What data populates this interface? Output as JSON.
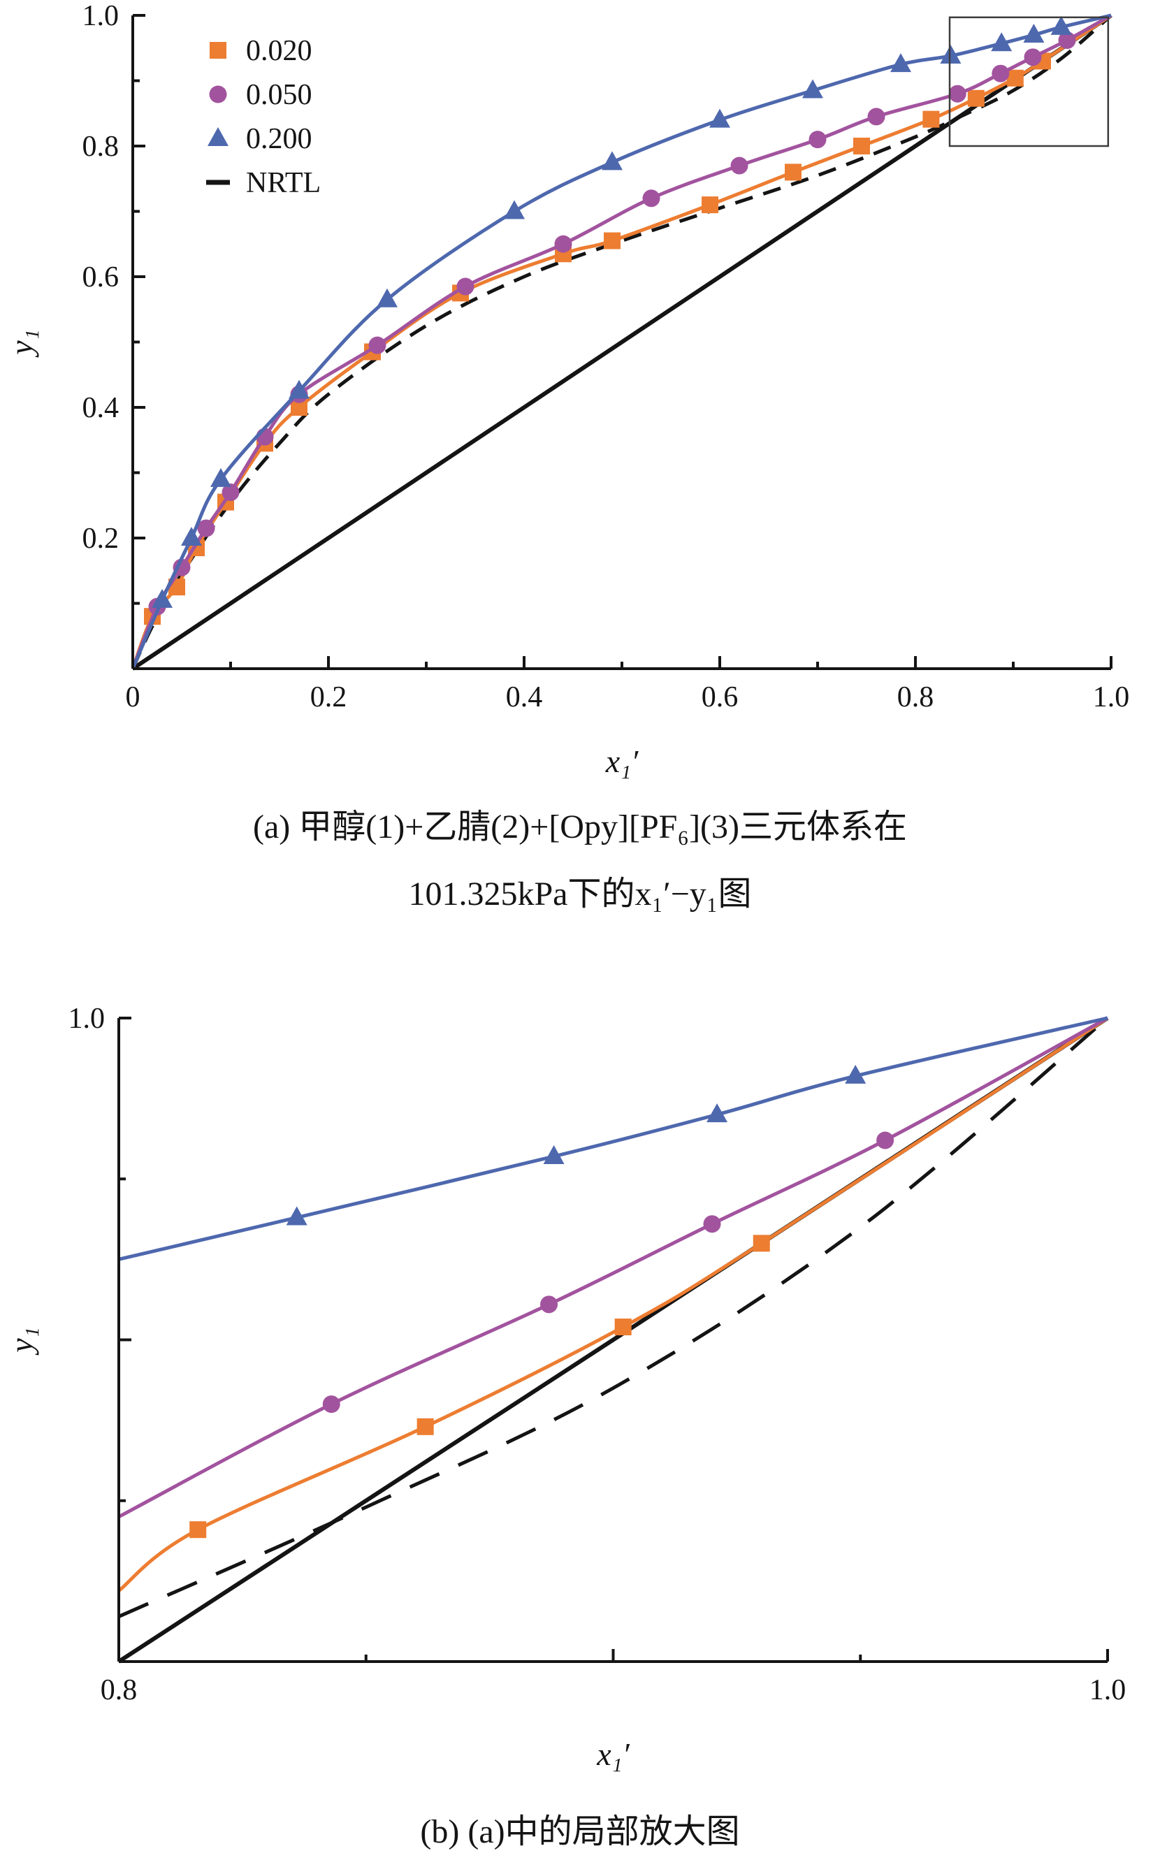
{
  "figure": {
    "caption_a_line1": "(a) 甲醇(1)+乙腈(2)+[Opy][PF₆](3)三元体系在",
    "caption_a_line2": "101.325kPa下的x₁′−y₁图",
    "caption_b": "(b) (a)中的局部放大图"
  },
  "colors": {
    "series_0020": "#ED7D31",
    "series_0050": "#A2539E",
    "series_0200": "#4E68AE",
    "nrtl": "#141414",
    "diagonal": "#141414",
    "axis": "#141414",
    "zoom_box": "#3C3C3C",
    "text": "#141414"
  },
  "chart_data": [
    {
      "id": "panel_a",
      "type": "line",
      "title": "",
      "xlabel": "x₁′",
      "ylabel": "y₁",
      "xlim": [
        0,
        1.0
      ],
      "ylim": [
        0,
        1.0
      ],
      "grid": false,
      "xticks": [
        0,
        0.2,
        0.4,
        0.6,
        0.8,
        1.0
      ],
      "xtick_labels": [
        "0",
        "0.2",
        "0.4",
        "0.6",
        "0.8",
        "1.0"
      ],
      "yticks": [
        0.2,
        0.4,
        0.6,
        0.8,
        1.0
      ],
      "ytick_labels": [
        "0.2",
        "0.4",
        "0.6",
        "0.8",
        "1.0"
      ],
      "legend_position": "upper-left",
      "legend": [
        {
          "label": "0.020",
          "marker": "square",
          "color_key": "series_0020"
        },
        {
          "label": "0.050",
          "marker": "circle",
          "color_key": "series_0050"
        },
        {
          "label": "0.200",
          "marker": "triangle",
          "color_key": "series_0200"
        },
        {
          "label": "NRTL",
          "marker": "dash",
          "color_key": "nrtl"
        }
      ],
      "diagonal": true,
      "series": [
        {
          "name": "0.020",
          "marker": "square",
          "color_key": "series_0020",
          "line_start": [
            0,
            0
          ],
          "line_end": [
            1,
            1
          ],
          "x": [
            0.02,
            0.045,
            0.065,
            0.095,
            0.135,
            0.17,
            0.245,
            0.335,
            0.44,
            0.49,
            0.59,
            0.675,
            0.745,
            0.816,
            0.862,
            0.902,
            0.93
          ],
          "y": [
            0.08,
            0.125,
            0.185,
            0.255,
            0.345,
            0.4,
            0.485,
            0.575,
            0.635,
            0.655,
            0.71,
            0.76,
            0.8,
            0.841,
            0.873,
            0.904,
            0.93
          ]
        },
        {
          "name": "0.050",
          "marker": "circle",
          "color_key": "series_0050",
          "line_start": [
            0,
            0
          ],
          "line_end": [
            1,
            1
          ],
          "x": [
            0.025,
            0.05,
            0.075,
            0.1,
            0.135,
            0.17,
            0.25,
            0.34,
            0.44,
            0.53,
            0.62,
            0.7,
            0.76,
            0.843,
            0.887,
            0.92,
            0.955
          ],
          "y": [
            0.095,
            0.155,
            0.215,
            0.27,
            0.355,
            0.42,
            0.495,
            0.585,
            0.65,
            0.72,
            0.77,
            0.81,
            0.845,
            0.88,
            0.911,
            0.936,
            0.962
          ]
        },
        {
          "name": "0.200",
          "marker": "triangle",
          "color_key": "series_0200",
          "line_start": [
            0,
            0
          ],
          "line_end": [
            1,
            1
          ],
          "x": [
            0.03,
            0.06,
            0.09,
            0.17,
            0.26,
            0.39,
            0.49,
            0.6,
            0.695,
            0.785,
            0.836,
            0.888,
            0.921,
            0.949
          ],
          "y": [
            0.105,
            0.2,
            0.29,
            0.425,
            0.565,
            0.7,
            0.775,
            0.84,
            0.885,
            0.925,
            0.938,
            0.957,
            0.97,
            0.982
          ]
        }
      ],
      "nrtl": {
        "dash": "26 16",
        "x": [
          0,
          0.02,
          0.05,
          0.1,
          0.15,
          0.2,
          0.3,
          0.4,
          0.5,
          0.6,
          0.7,
          0.8,
          0.85,
          0.9,
          0.95,
          1.0
        ],
        "y": [
          0,
          0.065,
          0.145,
          0.255,
          0.345,
          0.42,
          0.525,
          0.6,
          0.655,
          0.705,
          0.755,
          0.814,
          0.848,
          0.885,
          0.935,
          1.0
        ]
      },
      "zoom_box": {
        "x0": 0.835,
        "y0": 0.8,
        "x1": 0.997,
        "y1": 0.997
      }
    },
    {
      "id": "panel_b",
      "type": "line",
      "title": "",
      "xlabel": "x₁′",
      "ylabel": "y₁",
      "xlim": [
        0.8,
        1.0
      ],
      "ylim": [
        0.8,
        1.0
      ],
      "grid": false,
      "xticks": [
        0.8,
        0.9,
        1.0
      ],
      "xtick_labels": [
        "0.8",
        "",
        "1.0"
      ],
      "yticks": [
        0.9,
        1.0
      ],
      "ytick_labels": [
        "",
        "1.0"
      ],
      "legend": null,
      "diagonal": true,
      "series": [
        {
          "name": "0.020",
          "marker": "square",
          "color_key": "series_0020",
          "line_start": [
            0.8,
            0.822
          ],
          "line_end": [
            1,
            1
          ],
          "x": [
            0.816,
            0.862,
            0.902,
            0.93
          ],
          "y": [
            0.841,
            0.873,
            0.904,
            0.93
          ]
        },
        {
          "name": "0.050",
          "marker": "circle",
          "color_key": "series_0050",
          "line_start": [
            0.8,
            0.845
          ],
          "line_end": [
            1,
            1
          ],
          "x": [
            0.843,
            0.887,
            0.92,
            0.955
          ],
          "y": [
            0.88,
            0.911,
            0.936,
            0.962
          ]
        },
        {
          "name": "0.200",
          "marker": "triangle",
          "color_key": "series_0200",
          "line_start": [
            0.8,
            0.925
          ],
          "line_end": [
            1,
            1
          ],
          "x": [
            0.836,
            0.888,
            0.921,
            0.949
          ],
          "y": [
            0.938,
            0.957,
            0.97,
            0.982
          ]
        }
      ],
      "nrtl": {
        "dash": "46 30",
        "x": [
          0.8,
          0.85,
          0.9,
          0.95,
          1.0
        ],
        "y": [
          0.814,
          0.848,
          0.885,
          0.935,
          1.0
        ]
      },
      "zoom_box": null
    }
  ]
}
